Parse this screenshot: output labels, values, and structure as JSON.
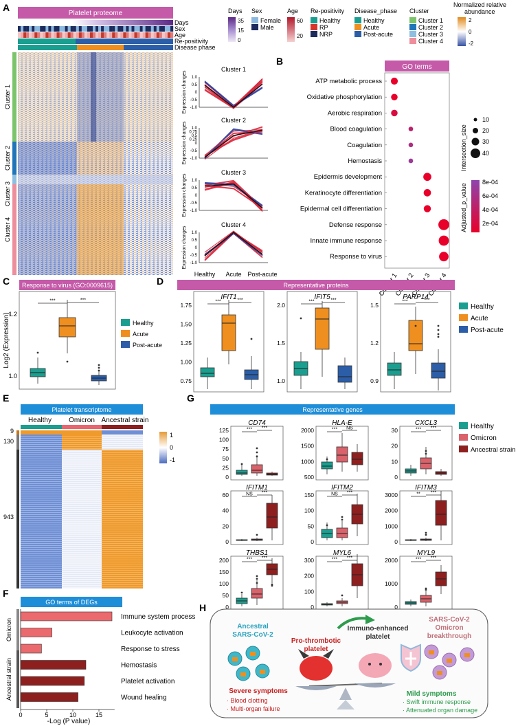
{
  "panels": {
    "a": "A",
    "b": "B",
    "c": "C",
    "d": "D",
    "e": "E",
    "f": "F",
    "g": "G",
    "h": "H"
  },
  "a": {
    "heatmap_title": "Platelet proteome",
    "track_labels": [
      "Days",
      "Sex",
      "Age",
      "Re-positivity",
      "Disease phase"
    ],
    "cluster_labels": [
      "Cluster 1",
      "Cluster 2",
      "Cluster 3",
      "Cluster 4"
    ],
    "legend": {
      "days_title": "Days",
      "days_ticks": [
        "35",
        "15",
        "0"
      ],
      "sex_title": "Sex",
      "sex_items": [
        "Female",
        "Male"
      ],
      "age_title": "Age",
      "age_ticks": [
        "60",
        "20"
      ],
      "repos_title": "Re-positivity",
      "repos_items": [
        "Healthy",
        "RP",
        "NRP"
      ],
      "phase_title": "Disease_phase",
      "phase_items": [
        "Healthy",
        "Acute",
        "Post-acute"
      ],
      "cluster_title": "Cluster",
      "cluster_items": [
        "Cluster 1",
        "Cluster 2",
        "Cluster 3",
        "Cluster 4"
      ],
      "abund_title_1": "Normalized relative",
      "abund_title_2": "abundance",
      "abund_ticks": [
        "2",
        "0",
        "-2"
      ]
    },
    "trend_titles": [
      "Cluster 1",
      "Cluster 2",
      "Cluster 3",
      "Cluster 4"
    ],
    "trend_ylabel": "Expression changes",
    "trend_yticks": [
      "1.0",
      "0.5",
      "0",
      "-0.5",
      "-1.0"
    ],
    "trend_yticks_c2": [
      "1.0",
      "0.75",
      "0.5",
      "0.25",
      "0",
      "-0.5",
      "-1.0"
    ],
    "trend_x": [
      "Healthy",
      "Acute",
      "Post-acute"
    ]
  },
  "b": {
    "title": "GO terms",
    "terms": [
      "ATP metabolic process",
      "Oxidative phosphorylation",
      "Aerobic respiration",
      "Blood coagulation",
      "Coagulation",
      "Hemostasis",
      "Epidermis development",
      "Keratinocyte differentiation",
      "Epidermal cell differentiation",
      "Defense response",
      "Innate immune response",
      "Response to virus"
    ],
    "clusters": [
      "Cluster 1",
      "Cluster 2",
      "Cluster 3",
      "Cluster 4"
    ],
    "points": [
      {
        "term": 0,
        "cluster": 0,
        "size": 12,
        "p": 0.0002
      },
      {
        "term": 1,
        "cluster": 0,
        "size": 10,
        "p": 0.0002
      },
      {
        "term": 2,
        "cluster": 0,
        "size": 10,
        "p": 0.0003
      },
      {
        "term": 3,
        "cluster": 1,
        "size": 3,
        "p": 0.0005
      },
      {
        "term": 4,
        "cluster": 1,
        "size": 3,
        "p": 0.0006
      },
      {
        "term": 5,
        "cluster": 1,
        "size": 3,
        "p": 0.0007
      },
      {
        "term": 6,
        "cluster": 2,
        "size": 18,
        "p": 0.0002
      },
      {
        "term": 7,
        "cluster": 2,
        "size": 14,
        "p": 0.0002
      },
      {
        "term": 8,
        "cluster": 2,
        "size": 13,
        "p": 0.0002
      },
      {
        "term": 9,
        "cluster": 3,
        "size": 40,
        "p": 0.00015
      },
      {
        "term": 10,
        "cluster": 3,
        "size": 34,
        "p": 0.00015
      },
      {
        "term": 11,
        "cluster": 3,
        "size": 28,
        "p": 0.00015
      }
    ],
    "size_title": "Intersection_size",
    "size_ticks": [
      "10",
      "20",
      "30",
      "40"
    ],
    "p_title": "Adjusted_p_value",
    "p_ticks": [
      "8e-04",
      "6e-04",
      "4e-04",
      "2e-04"
    ]
  },
  "c": {
    "title": "Response to virus (GO:0009615)",
    "ylabel": "Log2 (Expression)",
    "yticks": [
      "1.0",
      "1.2"
    ],
    "legend": [
      "Healthy",
      "Acute",
      "Post-acute"
    ],
    "sig": [
      "***",
      "***"
    ]
  },
  "d": {
    "title": "Representative proteins",
    "genes": [
      "IFIT1",
      "IFIT5",
      "PARP14"
    ],
    "yticks": [
      [
        "1.75",
        "1.50",
        "1.25",
        "1.00",
        "0.75"
      ],
      [
        "2.0",
        "1.5",
        "1.0"
      ],
      [
        "1.5",
        "1.2",
        "0.9"
      ]
    ],
    "legend": [
      "Healthy",
      "Acute",
      "Post-acute"
    ],
    "sig": "***"
  },
  "e": {
    "title": "Platelet transcriptome",
    "groups": [
      "Healthy",
      "Omicron",
      "Ancestral strain"
    ],
    "row_counts": [
      "9",
      "130",
      "943"
    ],
    "ticks": [
      "1",
      "0",
      "-1"
    ]
  },
  "f": {
    "title": "GO terms of DEGs",
    "groups": [
      "Omicron",
      "Ancestral strain"
    ],
    "xlabel": "-Log (P value)",
    "xticks": [
      "0",
      "5",
      "10",
      "15"
    ],
    "bars": [
      {
        "label": "Immune system process",
        "value": 17.5,
        "group": "Omicron"
      },
      {
        "label": "Leukocyte activation",
        "value": 6,
        "group": "Omicron"
      },
      {
        "label": "Response to stress",
        "value": 4,
        "group": "Omicron"
      },
      {
        "label": "Hemostasis",
        "value": 12.5,
        "group": "Ancestral strain"
      },
      {
        "label": "Platelet activation",
        "value": 12.2,
        "group": "Ancestral strain"
      },
      {
        "label": "Wound healing",
        "value": 11,
        "group": "Ancestral strain"
      }
    ]
  },
  "g": {
    "title": "Representative genes",
    "legend": [
      "Healthy",
      "Omicron",
      "Ancestral strain"
    ],
    "genes": [
      {
        "name": "CD74",
        "yticks": [
          "125",
          "100",
          "75",
          "50",
          "25",
          "0"
        ],
        "sig": [
          "***",
          "***"
        ]
      },
      {
        "name": "HLA-E",
        "yticks": [
          "2000",
          "1500",
          "1000",
          "500"
        ],
        "sig": [
          "***",
          "NS"
        ]
      },
      {
        "name": "CXCL3",
        "yticks": [
          "30",
          "20",
          "10",
          "0"
        ],
        "sig": [
          "***",
          "***"
        ]
      },
      {
        "name": "IFITM1",
        "yticks": [
          "60",
          "40",
          "20",
          "0"
        ],
        "sig": [
          "NS",
          "***"
        ]
      },
      {
        "name": "IFITM2",
        "yticks": [
          "150",
          "100",
          "50",
          "0"
        ],
        "sig": [
          "NS",
          "***"
        ]
      },
      {
        "name": "IFITM3",
        "yticks": [
          "3000",
          "2000",
          "1000",
          "0"
        ],
        "sig": [
          "**",
          "***"
        ]
      },
      {
        "name": "THBS1",
        "yticks": [
          "200",
          "150",
          "100",
          "50",
          "0"
        ],
        "sig": [
          "***",
          "***"
        ]
      },
      {
        "name": "MYL6",
        "yticks": [
          "300",
          "200",
          "100",
          "0"
        ],
        "sig": [
          "***",
          "***"
        ]
      },
      {
        "name": "MYL9",
        "yticks": [
          "2000",
          "1000",
          "0"
        ],
        "sig": [
          "***",
          "***"
        ]
      }
    ]
  },
  "h": {
    "ancestral_1": "Ancestral",
    "ancestral_2": "SARS-CoV-2",
    "omicron_1": "SARS-CoV-2",
    "omicron_2": "Omicron",
    "omicron_3": "breakthrough",
    "prothrombotic_1": "Pro-thrombotic",
    "prothrombotic_2": "platelet",
    "immuno_1": "Immuno-enhanced",
    "immuno_2": "platelet",
    "severe": "Severe symptoms",
    "severe_items": [
      "· Blood clotting",
      "· Multi-organ failure"
    ],
    "mild": "Mild symptoms",
    "mild_items": [
      "· Swift immune response",
      "· Attenuated organ damage"
    ]
  }
}
